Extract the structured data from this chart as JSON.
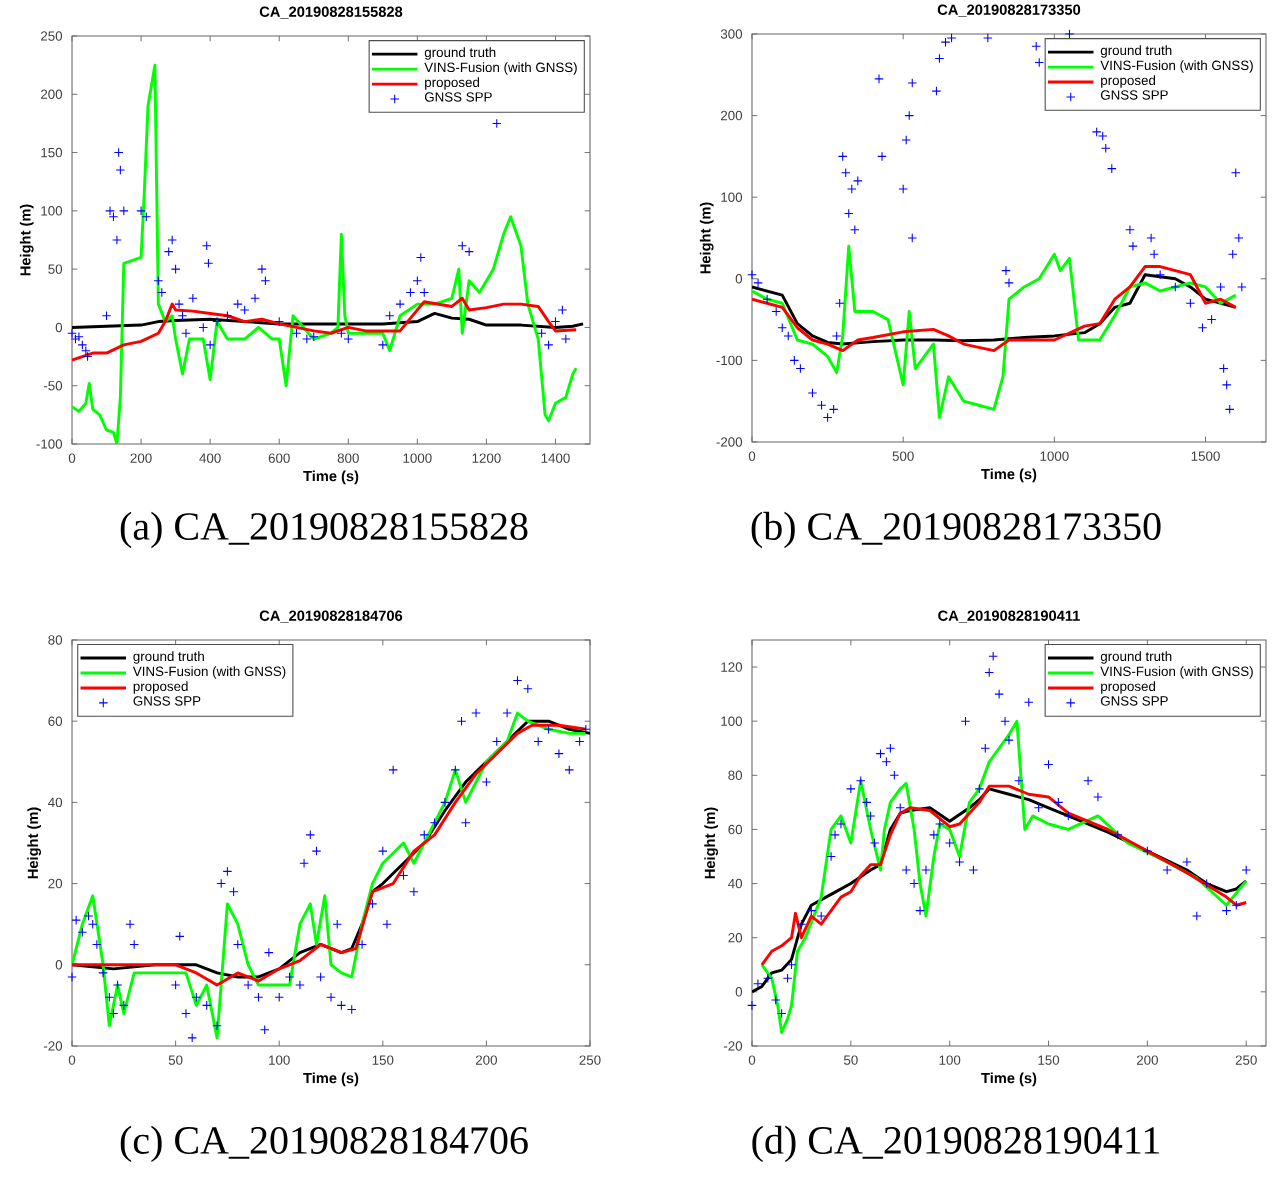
{
  "chart_data": [
    {
      "type": "line",
      "title": "CA_20190828155828",
      "xlabel": "Time (s)",
      "ylabel": "Height (m)",
      "xlim": [
        0,
        1500
      ],
      "ylim": [
        -100,
        250
      ],
      "xticks": [
        0,
        200,
        400,
        600,
        800,
        1000,
        1200,
        1400
      ],
      "yticks": [
        -100,
        -50,
        0,
        50,
        100,
        150,
        200,
        250
      ],
      "legend": "top right",
      "annotations": [
        "(a) CA_20190828155828"
      ],
      "series": [
        {
          "name": "ground truth",
          "color": "#000000",
          "x": [
            0,
            100,
            200,
            250,
            300,
            400,
            500,
            600,
            700,
            800,
            900,
            1000,
            1050,
            1100,
            1150,
            1200,
            1300,
            1400,
            1450,
            1480
          ],
          "values": [
            0,
            1,
            2,
            5,
            6,
            7,
            5,
            3,
            3,
            3,
            3,
            5,
            12,
            8,
            7,
            2,
            2,
            0,
            1,
            3
          ]
        },
        {
          "name": "VINS-Fusion (with GNSS)",
          "color": "#00ff00",
          "x": [
            0,
            20,
            40,
            50,
            60,
            80,
            100,
            120,
            130,
            140,
            150,
            180,
            200,
            210,
            220,
            240,
            250,
            270,
            290,
            300,
            320,
            340,
            380,
            400,
            420,
            450,
            500,
            540,
            580,
            600,
            620,
            640,
            700,
            750,
            770,
            780,
            790,
            800,
            900,
            920,
            950,
            1000,
            1050,
            1100,
            1120,
            1130,
            1150,
            1180,
            1220,
            1250,
            1270,
            1300,
            1320,
            1350,
            1370,
            1380,
            1400,
            1430,
            1450,
            1460
          ],
          "values": [
            -68,
            -72,
            -65,
            -48,
            -70,
            -75,
            -88,
            -90,
            -100,
            -60,
            55,
            58,
            60,
            120,
            190,
            225,
            20,
            5,
            10,
            -10,
            -40,
            -10,
            -10,
            -45,
            5,
            -10,
            -10,
            0,
            -10,
            -10,
            -50,
            10,
            -10,
            -5,
            0,
            80,
            10,
            -5,
            -5,
            -20,
            10,
            20,
            20,
            25,
            50,
            -5,
            40,
            30,
            50,
            80,
            95,
            70,
            20,
            -10,
            -75,
            -80,
            -65,
            -60,
            -40,
            -35
          ]
        },
        {
          "name": "proposed",
          "color": "#ff0000",
          "x": [
            0,
            30,
            60,
            100,
            150,
            200,
            250,
            270,
            290,
            300,
            350,
            400,
            450,
            500,
            550,
            600,
            650,
            700,
            750,
            800,
            850,
            950,
            1000,
            1020,
            1100,
            1130,
            1150,
            1200,
            1250,
            1300,
            1350,
            1380,
            1400,
            1460
          ],
          "values": [
            -28,
            -25,
            -22,
            -22,
            -15,
            -12,
            -5,
            5,
            20,
            15,
            14,
            12,
            10,
            5,
            7,
            3,
            0,
            -3,
            -5,
            0,
            -3,
            -3,
            15,
            22,
            18,
            25,
            15,
            17,
            20,
            20,
            18,
            5,
            -3,
            -2
          ]
        },
        {
          "name": "GNSS SPP",
          "type": "scatter",
          "marker": "cross",
          "color": "#0000ff",
          "x": [
            0,
            10,
            20,
            30,
            40,
            45,
            100,
            110,
            120,
            130,
            135,
            140,
            150,
            200,
            215,
            250,
            260,
            280,
            290,
            300,
            310,
            320,
            330,
            350,
            380,
            390,
            395,
            400,
            420,
            450,
            480,
            500,
            530,
            550,
            560,
            600,
            650,
            680,
            700,
            780,
            800,
            900,
            920,
            950,
            980,
            1000,
            1010,
            1020,
            1130,
            1150,
            1230,
            1360,
            1380,
            1400,
            1420,
            1430
          ],
          "values": [
            -5,
            -10,
            -8,
            -15,
            -20,
            -25,
            10,
            100,
            95,
            75,
            150,
            135,
            100,
            100,
            95,
            40,
            30,
            65,
            75,
            50,
            20,
            10,
            -5,
            25,
            0,
            70,
            55,
            -15,
            5,
            10,
            20,
            15,
            25,
            50,
            40,
            5,
            -5,
            -10,
            -8,
            -5,
            -10,
            -15,
            10,
            20,
            30,
            40,
            60,
            30,
            70,
            65,
            175,
            -5,
            -15,
            5,
            15,
            -10
          ]
        }
      ]
    },
    {
      "type": "line",
      "title": "CA_20190828173350",
      "xlabel": "Time (s)",
      "ylabel": "Height (m)",
      "xlim": [
        0,
        1700
      ],
      "ylim": [
        -200,
        300
      ],
      "xticks": [
        0,
        500,
        1000,
        1500
      ],
      "yticks": [
        -200,
        -100,
        0,
        100,
        200,
        300
      ],
      "legend": "top right",
      "annotations": [
        "(b) CA_20190828173350"
      ],
      "series": [
        {
          "name": "ground truth",
          "color": "#000000",
          "x": [
            0,
            50,
            100,
            150,
            200,
            250,
            300,
            400,
            500,
            600,
            700,
            800,
            900,
            1000,
            1100,
            1150,
            1200,
            1250,
            1300,
            1400,
            1450,
            1500,
            1550,
            1600
          ],
          "values": [
            -10,
            -15,
            -20,
            -55,
            -70,
            -78,
            -80,
            -77,
            -75,
            -75,
            -76,
            -75,
            -72,
            -70,
            -66,
            -55,
            -35,
            -30,
            5,
            0,
            -10,
            -25,
            -30,
            -35
          ]
        },
        {
          "name": "VINS-Fusion (with GNSS)",
          "color": "#00ff00",
          "x": [
            0,
            50,
            100,
            150,
            200,
            250,
            280,
            300,
            320,
            340,
            400,
            450,
            500,
            520,
            540,
            600,
            620,
            650,
            700,
            750,
            800,
            830,
            850,
            900,
            950,
            1000,
            1020,
            1050,
            1080,
            1150,
            1200,
            1250,
            1300,
            1350,
            1450,
            1500,
            1550,
            1600
          ],
          "values": [
            -15,
            -25,
            -30,
            -75,
            -80,
            -95,
            -115,
            -70,
            40,
            -40,
            -40,
            -50,
            -130,
            -40,
            -110,
            -80,
            -170,
            -120,
            -150,
            -155,
            -160,
            -120,
            -25,
            -10,
            0,
            30,
            10,
            25,
            -75,
            -75,
            -45,
            -10,
            -5,
            -15,
            -5,
            -10,
            -30,
            -20
          ]
        },
        {
          "name": "proposed",
          "color": "#ff0000",
          "x": [
            0,
            50,
            100,
            150,
            200,
            250,
            300,
            350,
            400,
            500,
            600,
            650,
            700,
            800,
            850,
            900,
            1000,
            1100,
            1150,
            1200,
            1250,
            1300,
            1350,
            1400,
            1450,
            1500,
            1550,
            1600
          ],
          "values": [
            -25,
            -30,
            -35,
            -60,
            -75,
            -80,
            -88,
            -75,
            -72,
            -65,
            -62,
            -70,
            -80,
            -88,
            -75,
            -75,
            -75,
            -58,
            -55,
            -25,
            -10,
            15,
            15,
            10,
            5,
            -30,
            -25,
            -35
          ]
        },
        {
          "name": "GNSS SPP",
          "type": "scatter",
          "marker": "cross",
          "color": "#0000ff",
          "x": [
            0,
            20,
            50,
            80,
            100,
            120,
            140,
            160,
            200,
            230,
            250,
            270,
            280,
            290,
            300,
            310,
            320,
            330,
            340,
            350,
            420,
            430,
            500,
            510,
            520,
            530,
            530,
            610,
            620,
            640,
            660,
            780,
            850,
            840,
            940,
            950,
            1050,
            1140,
            1160,
            1170,
            1190,
            1250,
            1260,
            1320,
            1330,
            1350,
            1400,
            1450,
            1490,
            1520,
            1550,
            1560,
            1570,
            1580,
            1590,
            1600,
            1610,
            1620
          ],
          "values": [
            5,
            -5,
            -25,
            -40,
            -60,
            -70,
            -100,
            -110,
            -140,
            -155,
            -170,
            -160,
            -70,
            -30,
            150,
            130,
            80,
            110,
            60,
            120,
            245,
            150,
            110,
            170,
            200,
            240,
            50,
            230,
            270,
            290,
            295,
            295,
            -5,
            10,
            285,
            265,
            300,
            180,
            175,
            160,
            135,
            60,
            40,
            50,
            30,
            5,
            -10,
            -30,
            -60,
            -50,
            -10,
            -110,
            -130,
            -160,
            30,
            130,
            50,
            -10
          ]
        }
      ]
    },
    {
      "type": "line",
      "title": "CA_20190828184706",
      "xlabel": "Time (s)",
      "ylabel": "Height (m)",
      "xlim": [
        0,
        250
      ],
      "ylim": [
        -20,
        80
      ],
      "xticks": [
        0,
        50,
        100,
        150,
        200,
        250
      ],
      "yticks": [
        -20,
        0,
        20,
        40,
        60,
        80
      ],
      "legend": "top left",
      "annotations": [
        "(c) CA_20190828184706"
      ],
      "series": [
        {
          "name": "ground truth",
          "color": "#000000",
          "x": [
            0,
            20,
            40,
            50,
            60,
            65,
            70,
            80,
            90,
            100,
            110,
            120,
            130,
            135,
            140,
            145,
            150,
            160,
            170,
            180,
            190,
            200,
            210,
            220,
            230,
            240,
            250
          ],
          "values": [
            0,
            -1,
            0,
            0,
            0,
            -1,
            -2,
            -3,
            -3,
            -1,
            3,
            5,
            3,
            4,
            10,
            18,
            20,
            25,
            30,
            38,
            45,
            50,
            55,
            60,
            60,
            58,
            57
          ]
        },
        {
          "name": "VINS-Fusion (with GNSS)",
          "color": "#00ff00",
          "x": [
            0,
            5,
            10,
            15,
            18,
            22,
            25,
            30,
            40,
            50,
            55,
            60,
            65,
            70,
            75,
            80,
            85,
            90,
            100,
            105,
            110,
            115,
            118,
            122,
            125,
            130,
            135,
            140,
            145,
            150,
            160,
            165,
            170,
            180,
            185,
            190,
            200,
            210,
            215,
            220,
            230,
            240,
            248
          ],
          "values": [
            0,
            10,
            17,
            0,
            -15,
            -5,
            -12,
            -2,
            -2,
            -2,
            -2,
            -10,
            -5,
            -18,
            15,
            10,
            0,
            -5,
            -5,
            -5,
            10,
            15,
            5,
            17,
            0,
            -2,
            -3,
            10,
            20,
            25,
            30,
            25,
            30,
            40,
            48,
            40,
            50,
            55,
            62,
            60,
            58,
            57,
            57
          ]
        },
        {
          "name": "proposed",
          "color": "#ff0000",
          "x": [
            0,
            20,
            40,
            50,
            60,
            70,
            80,
            90,
            100,
            110,
            120,
            130,
            137,
            145,
            155,
            165,
            175,
            185,
            195,
            205,
            215,
            222,
            235,
            248
          ],
          "values": [
            0,
            0,
            0,
            0,
            -2,
            -5,
            -2,
            -4,
            -1,
            1,
            5,
            3,
            4,
            18,
            20,
            28,
            32,
            40,
            47,
            52,
            57,
            59,
            59,
            58
          ]
        },
        {
          "name": "GNSS SPP",
          "type": "scatter",
          "marker": "cross",
          "color": "#0000ff",
          "x": [
            0,
            2,
            5,
            8,
            10,
            12,
            15,
            18,
            20,
            22,
            25,
            28,
            30,
            50,
            52,
            55,
            58,
            60,
            65,
            70,
            72,
            75,
            78,
            80,
            85,
            90,
            93,
            95,
            100,
            105,
            110,
            112,
            115,
            118,
            120,
            125,
            128,
            130,
            135,
            140,
            145,
            150,
            152,
            155,
            160,
            165,
            170,
            175,
            180,
            185,
            188,
            190,
            195,
            200,
            205,
            210,
            215,
            220,
            225,
            230,
            235,
            240,
            245,
            248
          ],
          "values": [
            -3,
            11,
            8,
            12,
            10,
            5,
            -2,
            -8,
            -12,
            -5,
            -10,
            10,
            5,
            -5,
            7,
            -12,
            -18,
            -8,
            -10,
            -15,
            20,
            23,
            18,
            5,
            -5,
            -8,
            -16,
            3,
            -8,
            -3,
            -5,
            25,
            32,
            28,
            -3,
            -8,
            10,
            -10,
            -11,
            5,
            15,
            28,
            10,
            48,
            22,
            18,
            32,
            35,
            40,
            48,
            60,
            35,
            62,
            45,
            55,
            62,
            70,
            68,
            55,
            58,
            52,
            48,
            55,
            58
          ]
        }
      ]
    },
    {
      "type": "line",
      "title": "CA_20190828190411",
      "xlabel": "Time (s)",
      "ylabel": "Height (m)",
      "xlim": [
        0,
        260
      ],
      "ylim": [
        -20,
        130
      ],
      "xticks": [
        0,
        50,
        100,
        150,
        200,
        250
      ],
      "yticks": [
        -20,
        0,
        20,
        40,
        60,
        80,
        100,
        120
      ],
      "legend": "top right",
      "annotations": [
        "(d) CA_20190828190411"
      ],
      "series": [
        {
          "name": "ground truth",
          "color": "#000000",
          "x": [
            0,
            5,
            10,
            15,
            20,
            25,
            30,
            40,
            50,
            60,
            65,
            70,
            75,
            80,
            90,
            100,
            110,
            115,
            120,
            130,
            140,
            150,
            160,
            180,
            200,
            220,
            230,
            240,
            245,
            250
          ],
          "values": [
            0,
            2,
            7,
            8,
            12,
            25,
            32,
            36,
            40,
            45,
            47,
            60,
            66,
            67,
            68,
            63,
            68,
            71,
            75,
            73,
            71,
            68,
            65,
            59,
            52,
            45,
            40,
            37,
            38,
            41
          ]
        },
        {
          "name": "VINS-Fusion (with GNSS)",
          "color": "#00ff00",
          "x": [
            5,
            10,
            13,
            15,
            18,
            20,
            23,
            27,
            35,
            40,
            45,
            50,
            55,
            60,
            65,
            67,
            70,
            75,
            78,
            82,
            85,
            88,
            92,
            95,
            100,
            105,
            110,
            115,
            120,
            125,
            130,
            134,
            138,
            142,
            150,
            160,
            175,
            190,
            210,
            225,
            240,
            250
          ],
          "values": [
            10,
            5,
            -5,
            -15,
            -10,
            -5,
            15,
            20,
            35,
            60,
            65,
            55,
            78,
            60,
            45,
            60,
            70,
            75,
            77,
            60,
            40,
            28,
            50,
            62,
            60,
            50,
            70,
            75,
            85,
            90,
            95,
            100,
            60,
            65,
            62,
            60,
            65,
            55,
            48,
            42,
            32,
            41
          ]
        },
        {
          "name": "proposed",
          "color": "#ff0000",
          "x": [
            5,
            10,
            15,
            20,
            22,
            25,
            30,
            35,
            40,
            45,
            50,
            55,
            60,
            65,
            70,
            75,
            80,
            90,
            95,
            100,
            105,
            110,
            115,
            120,
            130,
            140,
            150,
            160,
            180,
            200,
            220,
            240,
            245,
            250
          ],
          "values": [
            10,
            15,
            17,
            20,
            29,
            20,
            28,
            25,
            30,
            35,
            37,
            43,
            47,
            47,
            58,
            66,
            68,
            67,
            64,
            61,
            62,
            66,
            70,
            76,
            76,
            73,
            72,
            66,
            60,
            52,
            44,
            35,
            32,
            33
          ]
        },
        {
          "name": "GNSS SPP",
          "type": "scatter",
          "marker": "cross",
          "color": "#0000ff",
          "x": [
            0,
            3,
            8,
            12,
            15,
            18,
            20,
            25,
            30,
            35,
            40,
            42,
            45,
            50,
            55,
            58,
            60,
            62,
            65,
            68,
            70,
            72,
            75,
            78,
            82,
            85,
            88,
            92,
            95,
            100,
            105,
            108,
            112,
            115,
            118,
            120,
            122,
            125,
            128,
            130,
            135,
            140,
            145,
            150,
            155,
            160,
            170,
            175,
            185,
            200,
            210,
            220,
            225,
            230,
            240,
            245,
            250
          ],
          "values": [
            -5,
            3,
            5,
            -3,
            -8,
            5,
            10,
            25,
            30,
            28,
            50,
            58,
            62,
            75,
            78,
            70,
            65,
            55,
            88,
            85,
            90,
            80,
            68,
            45,
            40,
            30,
            45,
            58,
            62,
            55,
            48,
            100,
            45,
            75,
            90,
            118,
            124,
            110,
            100,
            93,
            78,
            107,
            68,
            84,
            70,
            65,
            78,
            72,
            58,
            52,
            45,
            48,
            28,
            40,
            30,
            32,
            45
          ]
        }
      ]
    }
  ]
}
